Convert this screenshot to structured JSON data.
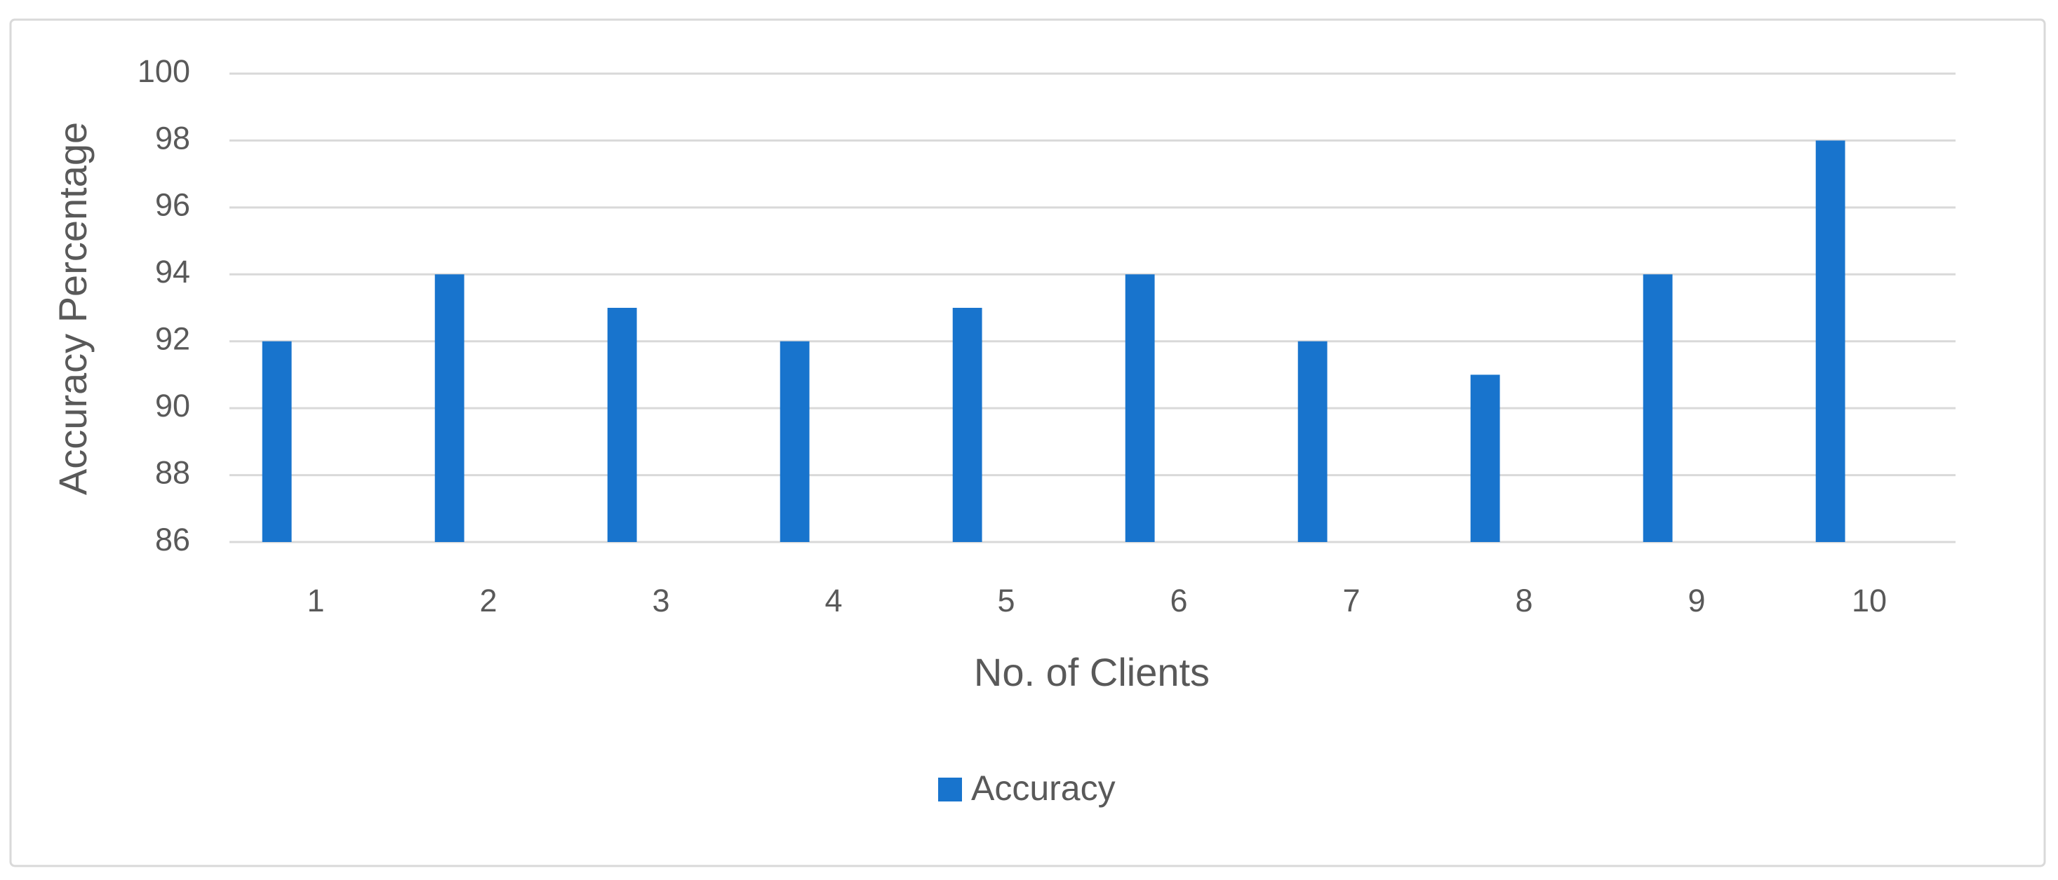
{
  "chart_data": {
    "type": "bar",
    "x_label": "No. of Clients",
    "y_label": "Accuracy Percentage",
    "categories": [
      "1",
      "2",
      "3",
      "4",
      "5",
      "6",
      "7",
      "8",
      "9",
      "10"
    ],
    "series": [
      {
        "name": "Accuracy",
        "color": "#1874cd",
        "values": [
          92,
          94,
          93,
          92,
          93,
          94,
          92,
          91,
          94,
          98
        ]
      }
    ],
    "ylim": [
      86,
      100
    ],
    "yticks": [
      86,
      88,
      90,
      92,
      94,
      96,
      98,
      100
    ],
    "grid": true,
    "legend": "bottom"
  }
}
